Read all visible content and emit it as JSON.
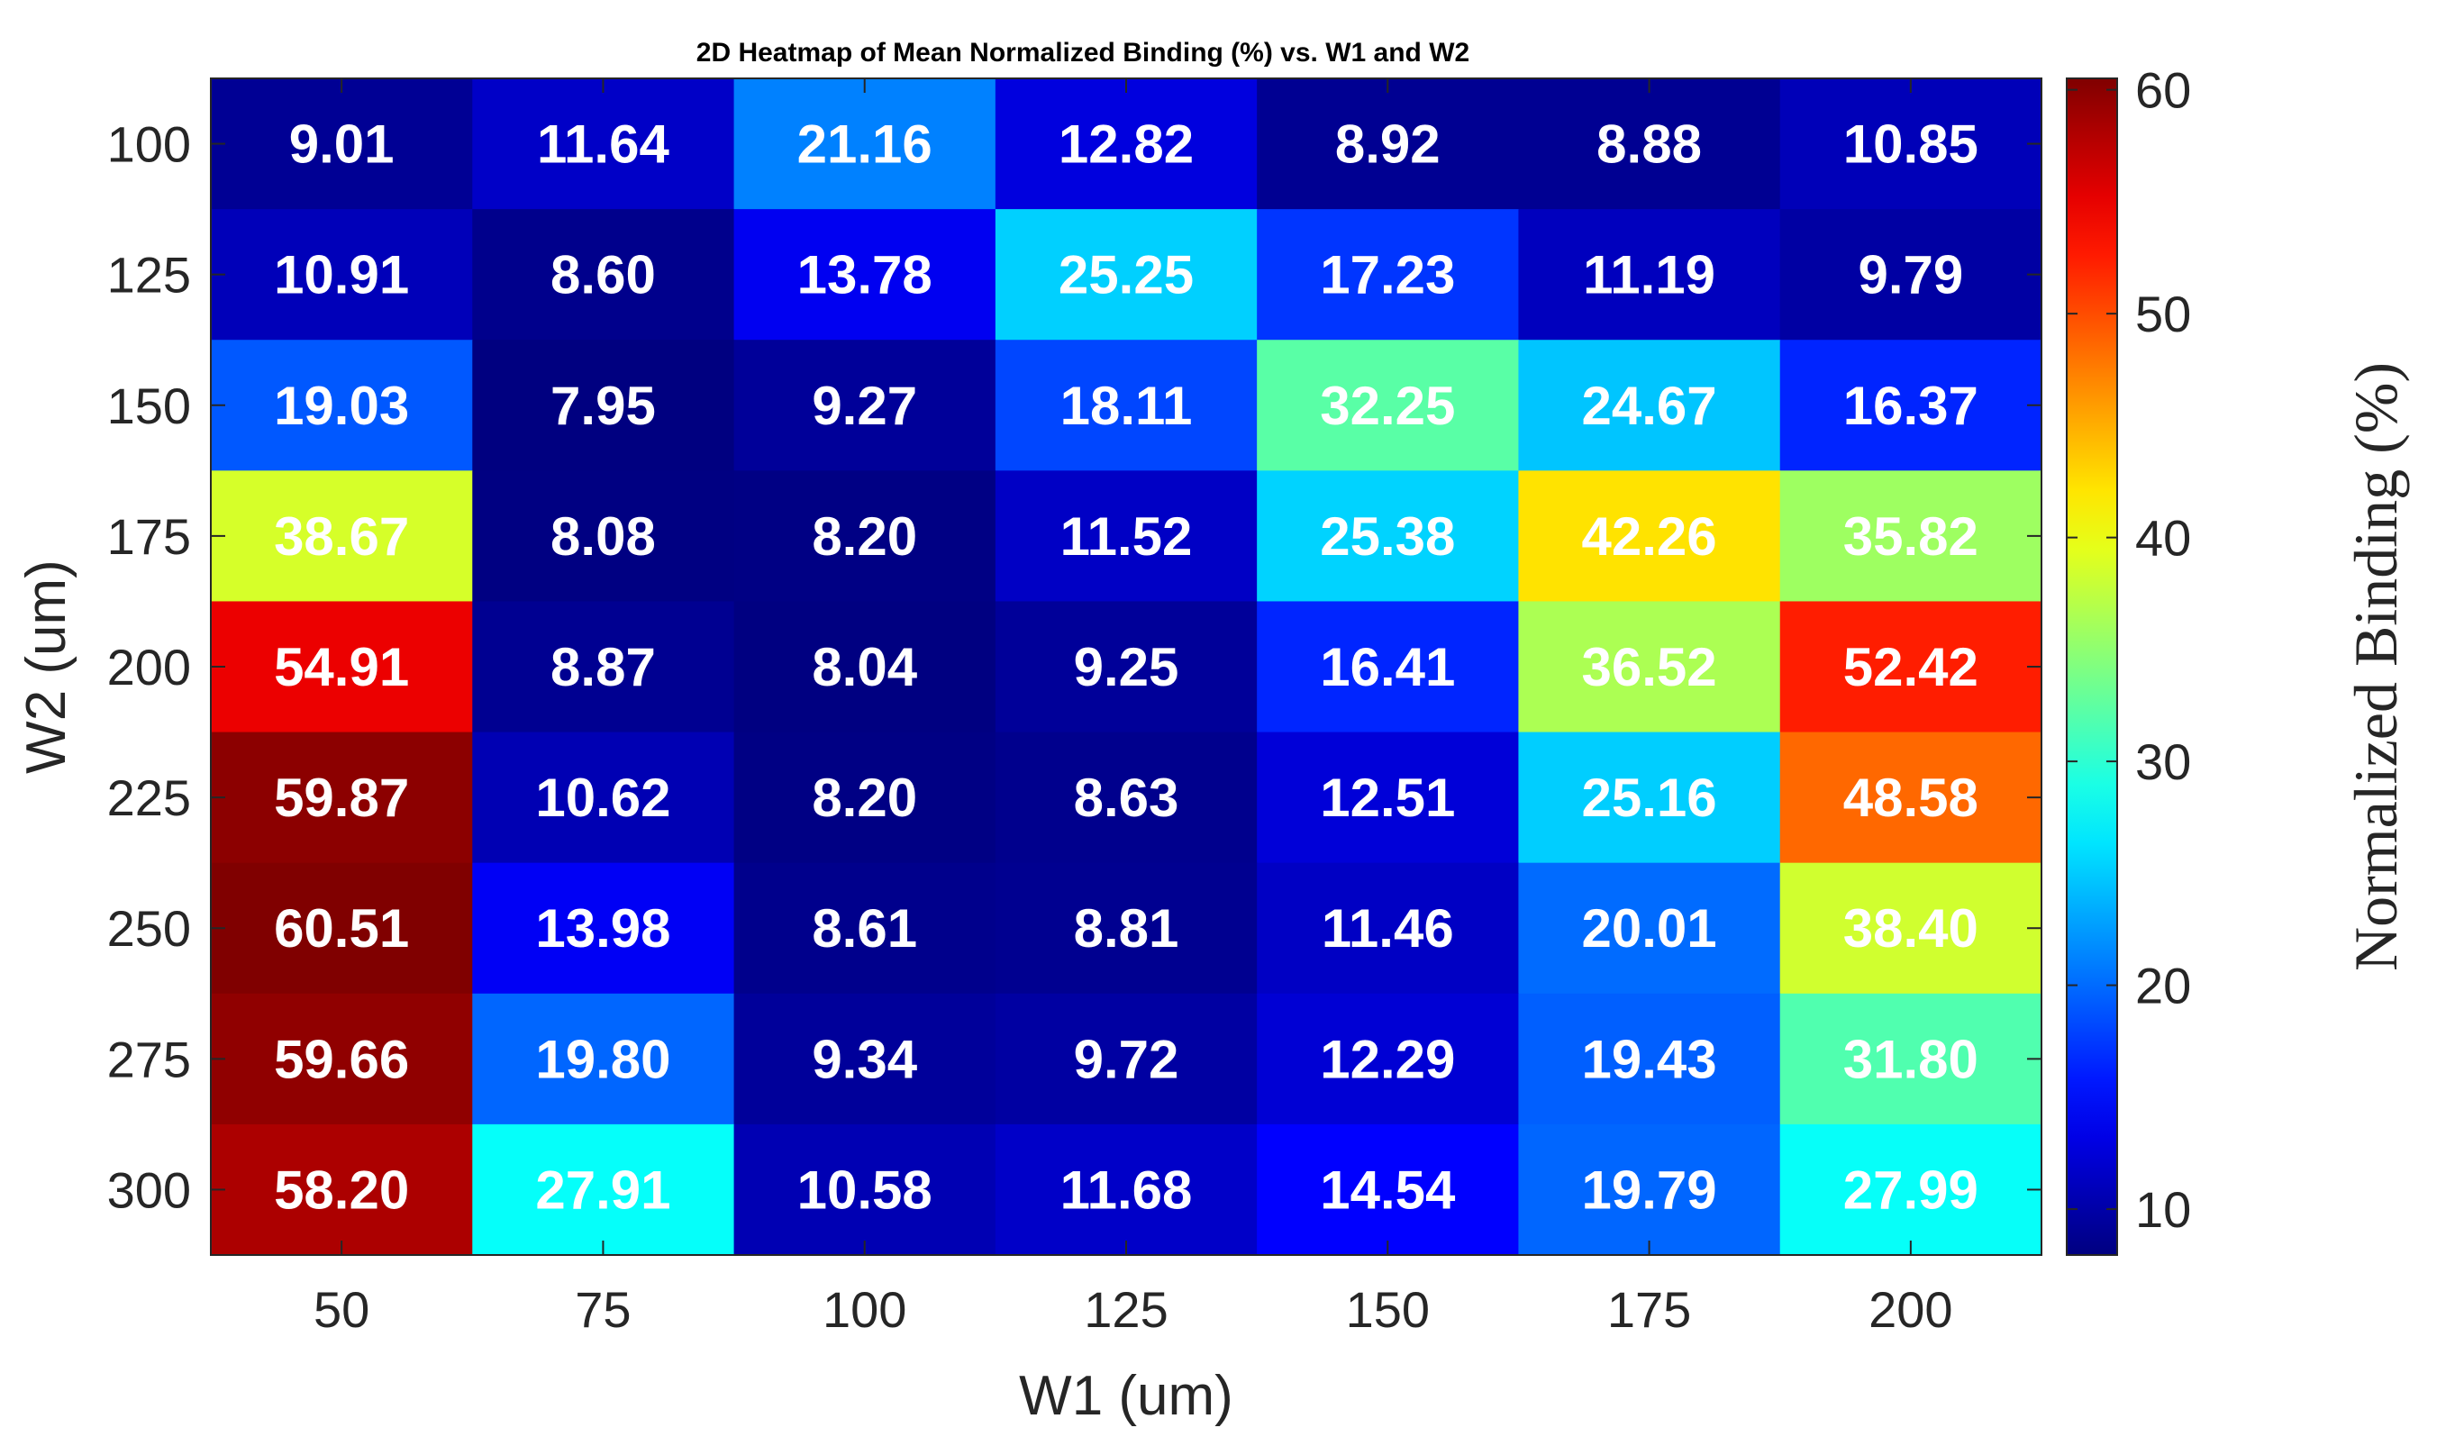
{
  "chart_data": {
    "type": "heatmap",
    "title": "2D Heatmap of Mean Normalized Binding (%) vs. W1 and W2",
    "xlabel": "W1 (um)",
    "ylabel": "W2 (um)",
    "x": [
      "50",
      "75",
      "100",
      "125",
      "150",
      "175",
      "200"
    ],
    "y": [
      "100",
      "125",
      "150",
      "175",
      "200",
      "225",
      "250",
      "275",
      "300"
    ],
    "values": [
      [
        9.01,
        11.64,
        21.16,
        12.82,
        8.92,
        8.88,
        10.85
      ],
      [
        10.91,
        8.6,
        13.78,
        25.25,
        17.23,
        11.19,
        9.79
      ],
      [
        19.03,
        7.95,
        9.27,
        18.11,
        32.25,
        24.67,
        16.37
      ],
      [
        38.67,
        8.08,
        8.2,
        11.52,
        25.38,
        42.26,
        35.82
      ],
      [
        54.91,
        8.87,
        8.04,
        9.25,
        16.41,
        36.52,
        52.42
      ],
      [
        59.87,
        10.62,
        8.2,
        8.63,
        12.51,
        25.16,
        48.58
      ],
      [
        60.51,
        13.98,
        8.61,
        8.81,
        11.46,
        20.01,
        38.4
      ],
      [
        59.66,
        19.8,
        9.34,
        9.72,
        12.29,
        19.43,
        31.8
      ],
      [
        58.2,
        27.91,
        10.58,
        11.68,
        14.54,
        19.79,
        27.99
      ]
    ],
    "cell_labels": [
      [
        "9.01",
        "11.64",
        "21.16",
        "12.82",
        "8.92",
        "8.88",
        "10.85"
      ],
      [
        "10.91",
        "8.60",
        "13.78",
        "25.25",
        "17.23",
        "11.19",
        "9.79"
      ],
      [
        "19.03",
        "7.95",
        "9.27",
        "18.11",
        "32.25",
        "24.67",
        "16.37"
      ],
      [
        "38.67",
        "8.08",
        "8.20",
        "11.52",
        "25.38",
        "42.26",
        "35.82"
      ],
      [
        "54.91",
        "8.87",
        "8.04",
        "9.25",
        "16.41",
        "36.52",
        "52.42"
      ],
      [
        "59.87",
        "10.62",
        "8.20",
        "8.63",
        "12.51",
        "25.16",
        "48.58"
      ],
      [
        "60.51",
        "13.98",
        "8.61",
        "8.81",
        "11.46",
        "20.01",
        "38.40"
      ],
      [
        "59.66",
        "19.80",
        "9.34",
        "9.72",
        "12.29",
        "19.43",
        "31.80"
      ],
      [
        "58.20",
        "27.91",
        "10.58",
        "11.68",
        "14.54",
        "19.79",
        "27.99"
      ]
    ],
    "colorscale": "jet",
    "clim": [
      7.95,
      60.51
    ],
    "colorbar": {
      "label": "Normalized Binding (%)",
      "ticks": [
        10,
        20,
        30,
        40,
        50,
        60
      ],
      "tick_labels": [
        "10",
        "20",
        "30",
        "40",
        "50",
        "60"
      ],
      "position": "right"
    },
    "grid": false
  }
}
